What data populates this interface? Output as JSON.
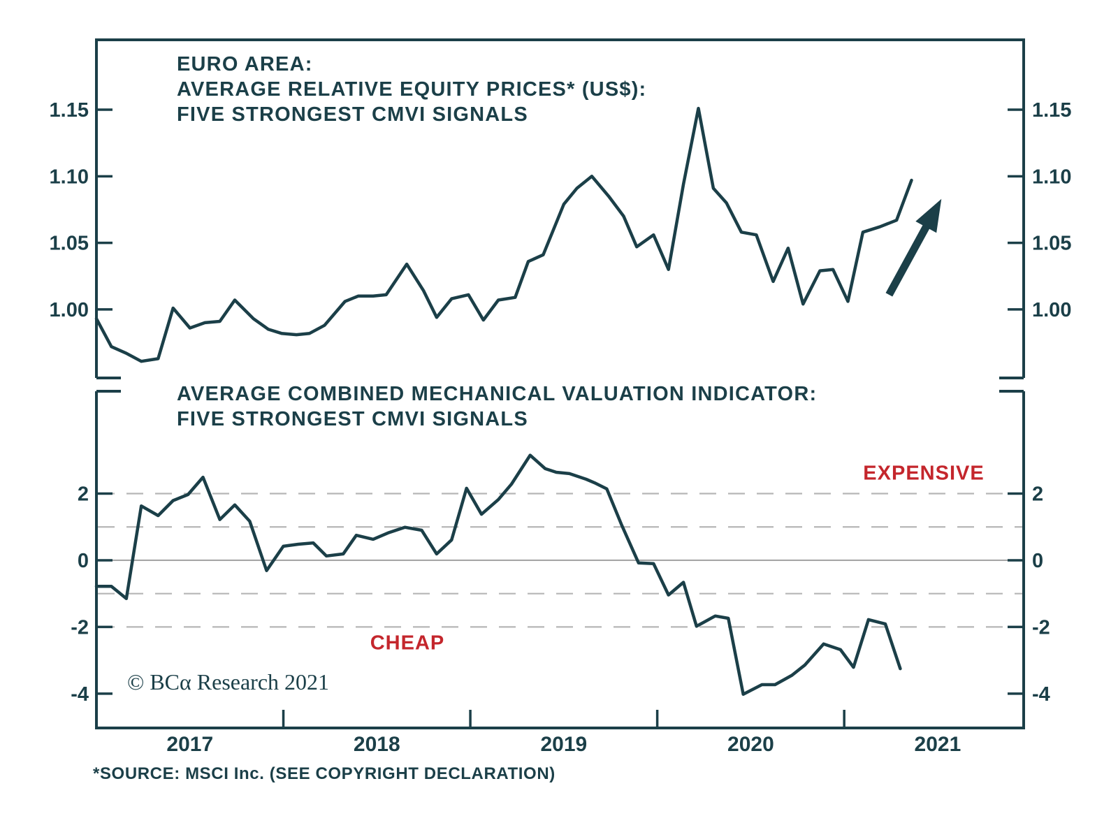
{
  "colors": {
    "ink": "#1b3f48",
    "red": "#c4262c",
    "grid_dashed": "#b6b6b6",
    "grid_zero": "#a6a6a6",
    "background": "#ffffff"
  },
  "top_panel": {
    "title_lines": [
      "EURO AREA:",
      "AVERAGE RELATIVE EQUITY PRICES* (US$):",
      "FIVE STRONGEST CMVI SIGNALS"
    ],
    "y_tick_labels": [
      "1.15",
      "1.10",
      "1.05",
      "1.00"
    ],
    "y_tick_values": [
      1.15,
      1.1,
      1.05,
      1.0
    ]
  },
  "bottom_panel": {
    "title_lines": [
      "AVERAGE COMBINED MECHANICAL VALUATION INDICATOR:",
      "FIVE STRONGEST CMVI SIGNALS"
    ],
    "y_tick_labels": [
      "2",
      "0",
      "-2",
      "-4"
    ],
    "y_tick_values": [
      2,
      0,
      -2,
      -4
    ],
    "expensive_label": "EXPENSIVE",
    "cheap_label": "CHEAP"
  },
  "x_axis": {
    "tick_years": [
      2018,
      2019,
      2020,
      2021
    ],
    "labels": [
      "2017",
      "2018",
      "2019",
      "2020",
      "2021"
    ],
    "label_centers": [
      2017.5,
      2018.5,
      2019.5,
      2020.5,
      2021.5
    ]
  },
  "branding": {
    "copyright": "© BCα Research 2021"
  },
  "footer": {
    "source_note": "*SOURCE: MSCI Inc. (SEE COPYRIGHT DECLARATION)"
  },
  "chart_data": [
    {
      "type": "line",
      "title": "EURO AREA: AVERAGE RELATIVE EQUITY PRICES* (US$): FIVE STRONGEST CMVI SIGNALS",
      "xlabel": "",
      "ylabel": "",
      "xlim": [
        2017.0,
        2021.96
      ],
      "ylim": [
        0.9485,
        1.2025
      ],
      "y_ticks": [
        1.0,
        1.05,
        1.1,
        1.15
      ],
      "grid": false,
      "legend_position": "none",
      "series": [
        {
          "name": "Average relative equity prices (US$), five strongest CMVI signals",
          "x": [
            2017.0,
            2017.08,
            2017.16,
            2017.24,
            2017.33,
            2017.41,
            2017.5,
            2017.58,
            2017.66,
            2017.74,
            2017.84,
            2017.92,
            2017.99,
            2018.07,
            2018.14,
            2018.22,
            2018.33,
            2018.4,
            2018.48,
            2018.55,
            2018.66,
            2018.75,
            2018.82,
            2018.9,
            2018.99,
            2019.07,
            2019.15,
            2019.24,
            2019.31,
            2019.39,
            2019.5,
            2019.57,
            2019.65,
            2019.74,
            2019.82,
            2019.89,
            2019.98,
            2020.06,
            2020.14,
            2020.22,
            2020.3,
            2020.37,
            2020.45,
            2020.53,
            2020.62,
            2020.7,
            2020.78,
            2020.87,
            2020.94,
            2021.02,
            2021.1,
            2021.19,
            2021.28,
            2021.36
          ],
          "y": [
            0.993,
            0.972,
            0.967,
            0.961,
            0.963,
            1.001,
            0.986,
            0.99,
            0.991,
            1.007,
            0.993,
            0.985,
            0.982,
            0.981,
            0.982,
            0.988,
            1.006,
            1.01,
            1.01,
            1.011,
            1.034,
            1.014,
            0.994,
            1.008,
            1.011,
            0.992,
            1.007,
            1.009,
            1.036,
            1.041,
            1.079,
            1.091,
            1.1,
            1.085,
            1.07,
            1.047,
            1.056,
            1.03,
            1.094,
            1.151,
            1.091,
            1.08,
            1.058,
            1.056,
            1.021,
            1.046,
            1.004,
            1.029,
            1.03,
            1.006,
            1.058,
            1.062,
            1.067,
            1.097
          ]
        }
      ],
      "arrow_annotation": {
        "x1": 2021.24,
        "y1": 1.011,
        "x2": 2021.52,
        "y2": 1.083
      }
    },
    {
      "type": "line",
      "title": "AVERAGE COMBINED MECHANICAL VALUATION INDICATOR: FIVE STRONGEST CMVI SIGNALS",
      "xlabel": "",
      "ylabel": "",
      "xlim": [
        2017.0,
        2021.96
      ],
      "ylim": [
        -5.03,
        5.07
      ],
      "y_ticks": [
        -4,
        -2,
        0,
        2
      ],
      "gridlines_dashed": [
        2,
        1,
        -1,
        -2
      ],
      "gridlines_solid": [
        0
      ],
      "legend_position": "none",
      "text_annotations": [
        {
          "text": "EXPENSIVE",
          "x": 2021.43,
          "y": 2.6,
          "color": "#c4262c"
        },
        {
          "text": "CHEAP",
          "x": 2018.66,
          "y": -2.5,
          "color": "#c4262c"
        }
      ],
      "series": [
        {
          "name": "Average combined mechanical valuation indicator, five strongest CMVI signals",
          "x": [
            2017.0,
            2017.08,
            2017.16,
            2017.24,
            2017.33,
            2017.41,
            2017.49,
            2017.57,
            2017.66,
            2017.74,
            2017.82,
            2017.91,
            2018.0,
            2018.08,
            2018.16,
            2018.23,
            2018.32,
            2018.39,
            2018.48,
            2018.56,
            2018.65,
            2018.74,
            2018.82,
            2018.9,
            2018.98,
            2019.06,
            2019.15,
            2019.22,
            2019.32,
            2019.4,
            2019.46,
            2019.53,
            2019.62,
            2019.67,
            2019.73,
            2019.81,
            2019.9,
            2019.98,
            2020.06,
            2020.14,
            2020.21,
            2020.31,
            2020.38,
            2020.46,
            2020.56,
            2020.63,
            2020.72,
            2020.79,
            2020.89,
            2020.98,
            2021.05,
            2021.13,
            2021.22,
            2021.3
          ],
          "y": [
            -0.78,
            -0.78,
            -1.15,
            1.63,
            1.34,
            1.79,
            1.97,
            2.49,
            1.22,
            1.66,
            1.17,
            -0.31,
            0.42,
            0.48,
            0.52,
            0.13,
            0.19,
            0.75,
            0.63,
            0.82,
            0.99,
            0.9,
            0.19,
            0.61,
            2.16,
            1.38,
            1.82,
            2.28,
            3.15,
            2.75,
            2.64,
            2.6,
            2.43,
            2.31,
            2.14,
            1.05,
            -0.08,
            -0.1,
            -1.04,
            -0.66,
            -1.98,
            -1.67,
            -1.74,
            -4.02,
            -3.73,
            -3.73,
            -3.45,
            -3.14,
            -2.51,
            -2.68,
            -3.21,
            -1.78,
            -1.91,
            -3.25
          ]
        }
      ]
    }
  ]
}
